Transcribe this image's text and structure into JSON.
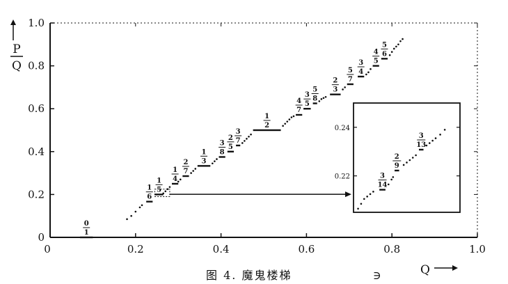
{
  "chart_data": {
    "type": "scatter",
    "title": "",
    "caption": "图 4. 魔鬼楼梯",
    "caption_extra": "∋",
    "xlabel": "Q",
    "ylabel_top": "P",
    "ylabel_bottom": "Q",
    "xlim": [
      0,
      1.0
    ],
    "ylim": [
      0,
      1.0
    ],
    "x_ticks": [
      "0",
      "0.2",
      "0.4",
      "0.6",
      "0.8",
      "1.0"
    ],
    "y_ticks": [
      "0",
      "0.2",
      "0.4",
      "0.6",
      "0.8",
      "1.0"
    ],
    "x_tick_values": [
      0,
      0.2,
      0.4,
      0.6,
      0.8,
      1.0
    ],
    "y_tick_values": [
      0,
      0.2,
      0.4,
      0.6,
      0.8,
      1.0
    ],
    "grid": false,
    "steps": [
      {
        "label_num": "0",
        "label_den": "1",
        "value": 0.0,
        "x_start": 0.07,
        "x_end": 0.1
      },
      {
        "label_num": "1",
        "label_den": "6",
        "value": 0.1667,
        "x_start": 0.225,
        "x_end": 0.24
      },
      {
        "label_num": "1",
        "label_den": "5",
        "value": 0.2,
        "x_start": 0.245,
        "x_end": 0.265
      },
      {
        "label_num": "1",
        "label_den": "4",
        "value": 0.25,
        "x_start": 0.285,
        "x_end": 0.3
      },
      {
        "label_num": "2",
        "label_den": "7",
        "value": 0.2857,
        "x_start": 0.31,
        "x_end": 0.325
      },
      {
        "label_num": "1",
        "label_den": "3",
        "value": 0.3333,
        "x_start": 0.345,
        "x_end": 0.375
      },
      {
        "label_num": "3",
        "label_den": "8",
        "value": 0.375,
        "x_start": 0.395,
        "x_end": 0.41
      },
      {
        "label_num": "2",
        "label_den": "5",
        "value": 0.4,
        "x_start": 0.415,
        "x_end": 0.43
      },
      {
        "label_num": "3",
        "label_den": "7",
        "value": 0.4286,
        "x_start": 0.435,
        "x_end": 0.445
      },
      {
        "label_num": "1",
        "label_den": "2",
        "value": 0.5,
        "x_start": 0.475,
        "x_end": 0.54
      },
      {
        "label_num": "4",
        "label_den": "7",
        "value": 0.5714,
        "x_start": 0.575,
        "x_end": 0.59
      },
      {
        "label_num": "3",
        "label_den": "5",
        "value": 0.6,
        "x_start": 0.593,
        "x_end": 0.61
      },
      {
        "label_num": "5",
        "label_den": "8",
        "value": 0.625,
        "x_start": 0.615,
        "x_end": 0.625
      },
      {
        "label_num": "2",
        "label_den": "3",
        "value": 0.6667,
        "x_start": 0.655,
        "x_end": 0.68
      },
      {
        "label_num": "5",
        "label_den": "7",
        "value": 0.7143,
        "x_start": 0.695,
        "x_end": 0.71
      },
      {
        "label_num": "3",
        "label_den": "4",
        "value": 0.75,
        "x_start": 0.72,
        "x_end": 0.735
      },
      {
        "label_num": "4",
        "label_den": "5",
        "value": 0.8,
        "x_start": 0.755,
        "x_end": 0.77
      },
      {
        "label_num": "5",
        "label_den": "6",
        "value": 0.8333,
        "x_start": 0.775,
        "x_end": 0.79
      }
    ],
    "staircase_points": [
      [
        0.18,
        0.085
      ],
      [
        0.19,
        0.1
      ],
      [
        0.2,
        0.12
      ],
      [
        0.21,
        0.14
      ],
      [
        0.215,
        0.15
      ],
      [
        0.265,
        0.205
      ],
      [
        0.27,
        0.215
      ],
      [
        0.275,
        0.225
      ],
      [
        0.28,
        0.235
      ],
      [
        0.3,
        0.26
      ],
      [
        0.305,
        0.27
      ],
      [
        0.33,
        0.3
      ],
      [
        0.335,
        0.31
      ],
      [
        0.34,
        0.32
      ],
      [
        0.38,
        0.345
      ],
      [
        0.385,
        0.355
      ],
      [
        0.39,
        0.365
      ],
      [
        0.45,
        0.44
      ],
      [
        0.455,
        0.45
      ],
      [
        0.46,
        0.46
      ],
      [
        0.465,
        0.47
      ],
      [
        0.47,
        0.48
      ],
      [
        0.545,
        0.52
      ],
      [
        0.55,
        0.53
      ],
      [
        0.555,
        0.54
      ],
      [
        0.56,
        0.55
      ],
      [
        0.565,
        0.56
      ],
      [
        0.57,
        0.565
      ],
      [
        0.63,
        0.635
      ],
      [
        0.635,
        0.645
      ],
      [
        0.64,
        0.65
      ],
      [
        0.645,
        0.655
      ],
      [
        0.685,
        0.69
      ],
      [
        0.69,
        0.7
      ],
      [
        0.74,
        0.76
      ],
      [
        0.745,
        0.77
      ],
      [
        0.75,
        0.785
      ],
      [
        0.795,
        0.85
      ],
      [
        0.8,
        0.865
      ],
      [
        0.805,
        0.88
      ],
      [
        0.81,
        0.89
      ],
      [
        0.815,
        0.9
      ],
      [
        0.82,
        0.915
      ],
      [
        0.825,
        0.925
      ]
    ],
    "zoom_box": {
      "x0": 0.245,
      "x1": 0.28,
      "y0": 0.19,
      "y1": 0.225
    },
    "inset": {
      "xlim": [
        0.245,
        0.28
      ],
      "ylim": [
        0.205,
        0.25
      ],
      "y_ticks": [
        "0.24",
        "0.22"
      ],
      "y_tick_values": [
        0.24,
        0.22
      ],
      "steps": [
        {
          "label_num": "3",
          "label_den": "14",
          "value": 0.2143,
          "x_start": 0.2535,
          "x_end": 0.2555
        },
        {
          "label_num": "2",
          "label_den": "9",
          "value": 0.2222,
          "x_start": 0.2585,
          "x_end": 0.26
        },
        {
          "label_num": "3",
          "label_den": "13",
          "value": 0.2308,
          "x_start": 0.2665,
          "x_end": 0.268
        }
      ],
      "points": [
        [
          0.2465,
          0.2065
        ],
        [
          0.2475,
          0.2085
        ],
        [
          0.2485,
          0.2105
        ],
        [
          0.2495,
          0.2115
        ],
        [
          0.2505,
          0.2125
        ],
        [
          0.2515,
          0.2135
        ],
        [
          0.2565,
          0.2165
        ],
        [
          0.2575,
          0.2185
        ],
        [
          0.258,
          0.2195
        ],
        [
          0.2615,
          0.2245
        ],
        [
          0.2625,
          0.2255
        ],
        [
          0.2635,
          0.2265
        ],
        [
          0.2645,
          0.2275
        ],
        [
          0.2655,
          0.2285
        ],
        [
          0.269,
          0.2325
        ],
        [
          0.27,
          0.2335
        ],
        [
          0.271,
          0.2345
        ],
        [
          0.272,
          0.2355
        ],
        [
          0.2735,
          0.237
        ],
        [
          0.275,
          0.239
        ]
      ]
    }
  }
}
